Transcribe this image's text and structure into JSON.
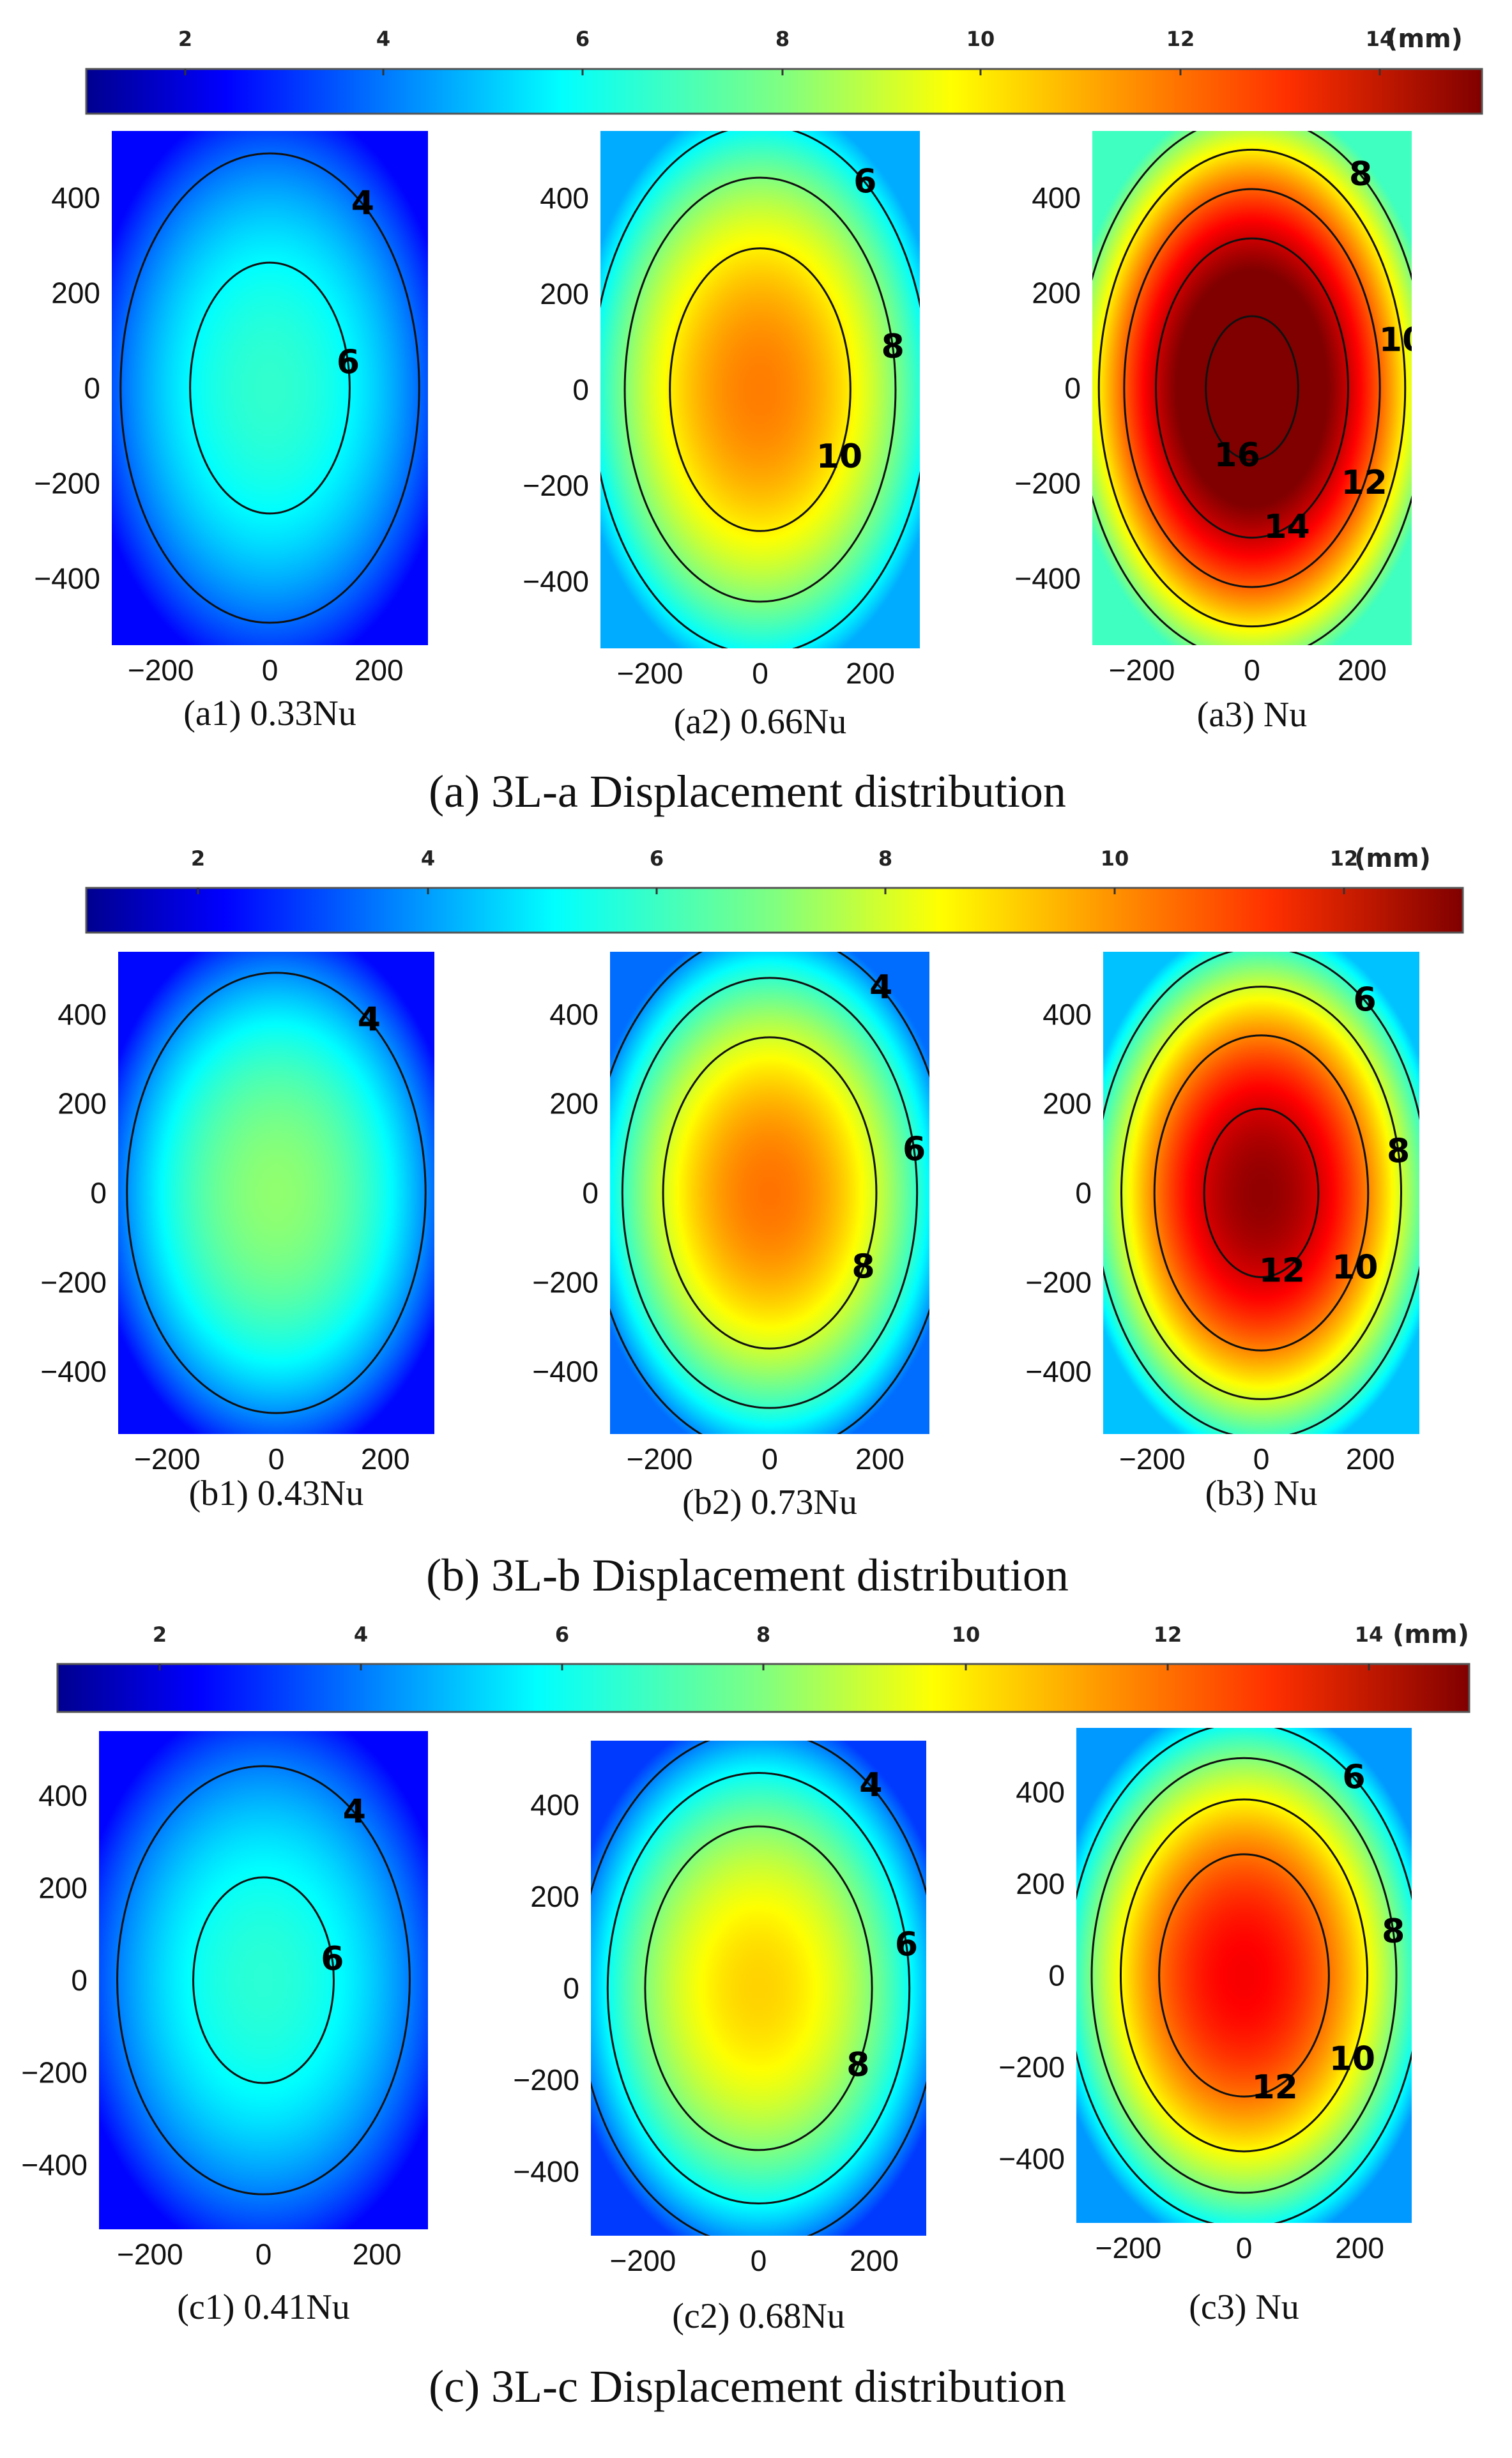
{
  "chart_data": [
    {
      "section_caption": "(a) 3L-a Displacement distribution",
      "colorbar": {
        "ticks": [
          "2",
          "4",
          "6",
          "8",
          "10",
          "12",
          "14"
        ],
        "unit": "(mm)",
        "range": [
          1,
          15
        ]
      },
      "panels": [
        {
          "type": "contour",
          "caption": "(a1) 0.33Nu",
          "xticks": [
            "−200",
            "0",
            "200"
          ],
          "yticks": [
            "400",
            "200",
            "0",
            "−200",
            "−400"
          ],
          "xlim": [
            -290,
            290
          ],
          "ylim": [
            -540,
            540
          ],
          "peak_mm": 6.8,
          "edge_mm": 2.6,
          "levels": [
            "4",
            "6"
          ]
        },
        {
          "type": "contour",
          "caption": "(a2) 0.66Nu",
          "xticks": [
            "−200",
            "0",
            "200"
          ],
          "yticks": [
            "400",
            "200",
            "0",
            "−200",
            "−400"
          ],
          "xlim": [
            -290,
            290
          ],
          "ylim": [
            -540,
            540
          ],
          "peak_mm": 11.6,
          "edge_mm": 4.9,
          "levels": [
            "6",
            "8",
            "10"
          ]
        },
        {
          "type": "contour",
          "caption": "(a3) Nu",
          "xticks": [
            "−200",
            "0",
            "200"
          ],
          "yticks": [
            "400",
            "200",
            "0",
            "−200",
            "−400"
          ],
          "xlim": [
            -290,
            290
          ],
          "ylim": [
            -540,
            540
          ],
          "peak_mm": 16.6,
          "edge_mm": 7.0,
          "levels": [
            "8",
            "10",
            "12",
            "14",
            "16"
          ]
        }
      ]
    },
    {
      "section_caption": "(b) 3L-b Displacement distribution",
      "colorbar": {
        "ticks": [
          "2",
          "4",
          "6",
          "8",
          "10",
          "12"
        ],
        "unit": "(mm)",
        "range": [
          1,
          13
        ]
      },
      "panels": [
        {
          "type": "contour",
          "caption": "(b1) 0.43Nu",
          "xticks": [
            "−200",
            "0",
            "200"
          ],
          "yticks": [
            "400",
            "200",
            "0",
            "−200",
            "−400"
          ],
          "xlim": [
            -290,
            290
          ],
          "ylim": [
            -540,
            540
          ],
          "peak_mm": 7.2,
          "edge_mm": 2.4,
          "levels": [
            "4"
          ]
        },
        {
          "type": "contour",
          "caption": "(b2) 0.73Nu",
          "xticks": [
            "−200",
            "0",
            "200"
          ],
          "yticks": [
            "400",
            "200",
            "0",
            "−200",
            "−400"
          ],
          "xlim": [
            -290,
            290
          ],
          "ylim": [
            -540,
            540
          ],
          "peak_mm": 10.2,
          "edge_mm": 3.6,
          "levels": [
            "4",
            "6",
            "8"
          ]
        },
        {
          "type": "contour",
          "caption": "(b3) Nu",
          "xticks": [
            "−200",
            "0",
            "200"
          ],
          "yticks": [
            "400",
            "200",
            "0",
            "−200",
            "−400"
          ],
          "xlim": [
            -290,
            290
          ],
          "ylim": [
            -540,
            540
          ],
          "peak_mm": 12.8,
          "edge_mm": 4.6,
          "levels": [
            "6",
            "8",
            "10",
            "12"
          ]
        }
      ]
    },
    {
      "section_caption": "(c) 3L-c Displacement distribution",
      "colorbar": {
        "ticks": [
          "2",
          "4",
          "6",
          "8",
          "10",
          "12",
          "14"
        ],
        "unit": "(mm)",
        "range": [
          0.5,
          15.5
        ]
      },
      "panels": [
        {
          "type": "contour",
          "caption": "(c1) 0.41Nu",
          "xticks": [
            "−200",
            "0",
            "200"
          ],
          "yticks": [
            "400",
            "200",
            "0",
            "−200",
            "−400"
          ],
          "xlim": [
            -290,
            290
          ],
          "ylim": [
            -540,
            540
          ],
          "peak_mm": 6.6,
          "edge_mm": 2.2,
          "levels": [
            "4",
            "6"
          ]
        },
        {
          "type": "contour",
          "caption": "(c2) 0.68Nu",
          "xticks": [
            "−200",
            "0",
            "200"
          ],
          "yticks": [
            "400",
            "200",
            "0",
            "−200",
            "−400"
          ],
          "xlim": [
            -290,
            290
          ],
          "ylim": [
            -540,
            540
          ],
          "peak_mm": 10.6,
          "edge_mm": 3.0,
          "levels": [
            "4",
            "6",
            "8"
          ]
        },
        {
          "type": "contour",
          "caption": "(c3) Nu",
          "xticks": [
            "−200",
            "0",
            "200"
          ],
          "yticks": [
            "400",
            "200",
            "0",
            "−200",
            "−400"
          ],
          "xlim": [
            -290,
            290
          ],
          "ylim": [
            -540,
            540
          ],
          "peak_mm": 13.8,
          "edge_mm": 4.4,
          "levels": [
            "6",
            "8",
            "10",
            "12"
          ]
        }
      ]
    }
  ]
}
